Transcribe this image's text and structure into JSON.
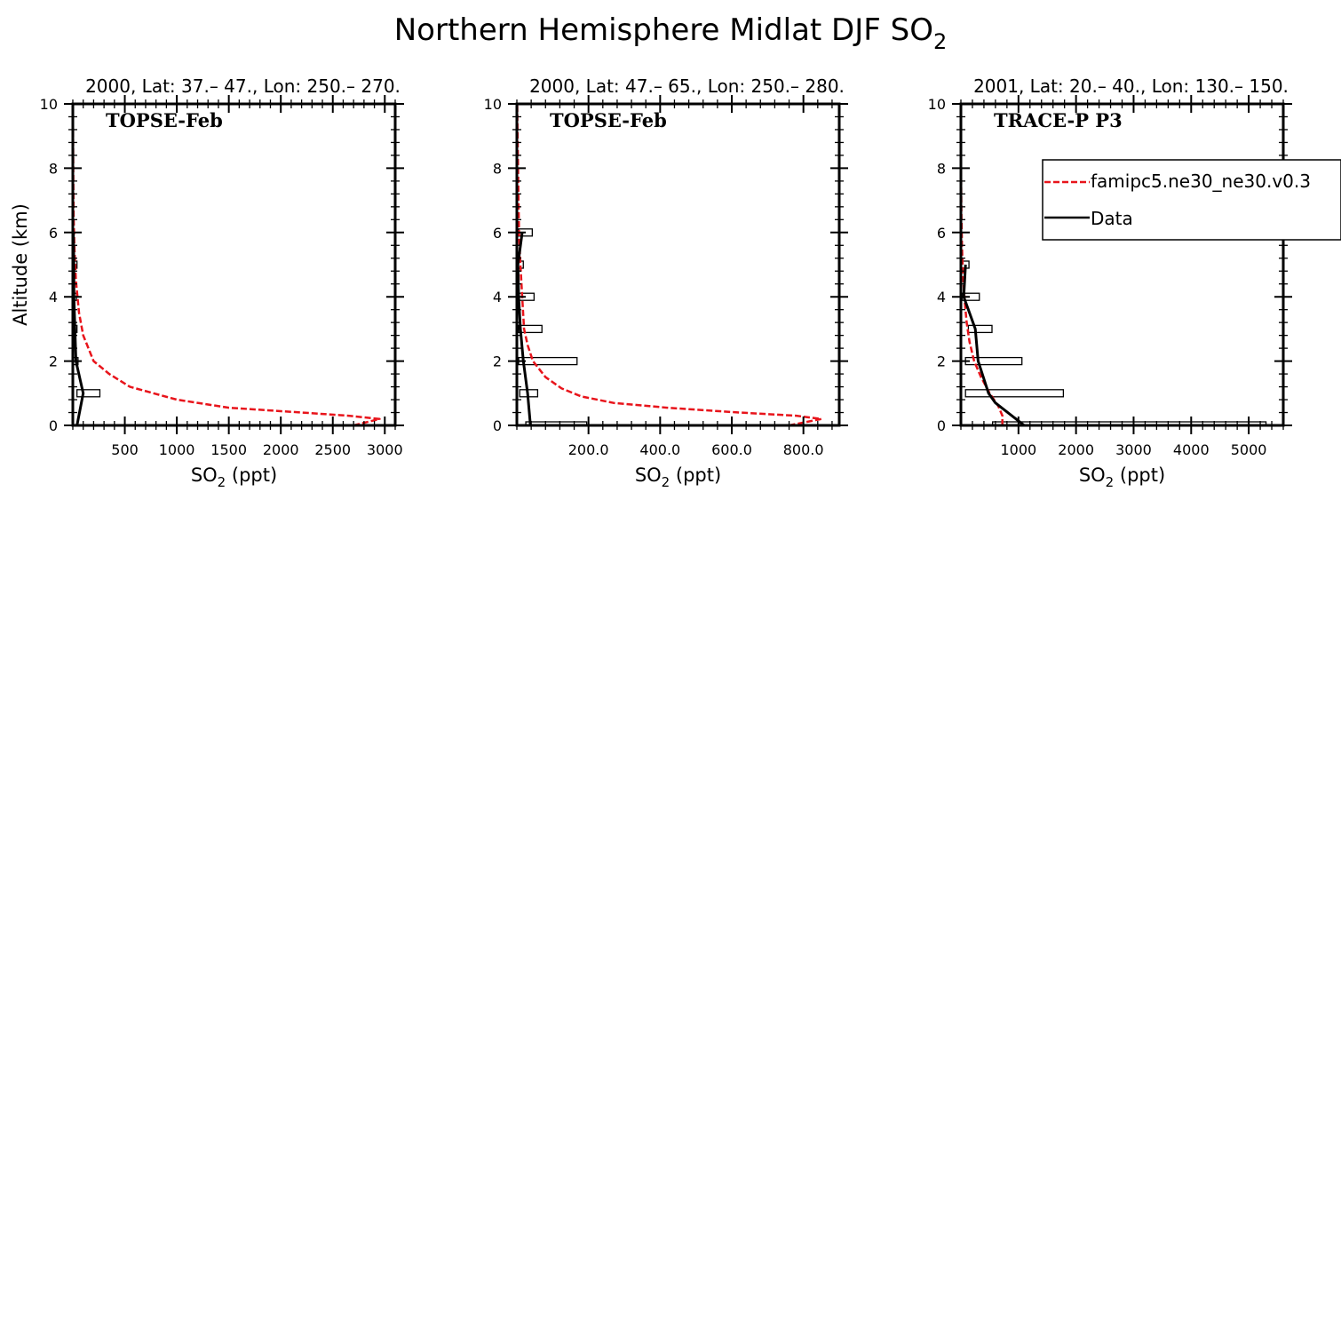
{
  "figure": {
    "title_main": "Northern Hemisphere Midlat DJF SO",
    "title_sub": "2",
    "y_axis_label": "Altitude (km)",
    "legend": {
      "model_label": "famipc5.ne30_ne30.v0.3",
      "data_label": "Data"
    },
    "colors": {
      "model": "#e8141b",
      "data": "#000000"
    }
  },
  "chart_data": [
    {
      "type": "line",
      "title": "2000, Lat: 37.– 47., Lon: 250.– 270.",
      "campaign": "TOPSE-Feb",
      "xlabel_main": "SO",
      "xlabel_sub": "2",
      "xlabel_unit": "(ppt)",
      "xlim": [
        0,
        3100
      ],
      "ylim": [
        0,
        10
      ],
      "x_ticks": [
        500,
        1000,
        1500,
        2000,
        2500,
        3000
      ],
      "x_tick_labels": [
        "500",
        "1000",
        "1500",
        "2000",
        "2500",
        "3000"
      ],
      "x_minor_step": 100,
      "y_ticks": [
        0,
        2,
        4,
        6,
        8,
        10
      ],
      "y_tick_labels": [
        "0",
        "2",
        "4",
        "6",
        "8",
        "10"
      ],
      "series": [
        {
          "name": "famipc5.ne30_ne30.v0.3",
          "style": "dashed",
          "x": [
            2700,
            2950,
            2650,
            2200,
            1500,
            1000,
            550,
            350,
            200,
            100,
            60,
            30,
            15,
            8,
            5,
            3,
            2,
            1
          ],
          "y": [
            0.0,
            0.2,
            0.3,
            0.4,
            0.55,
            0.8,
            1.2,
            1.6,
            2.0,
            2.8,
            3.5,
            4.5,
            5.5,
            6.5,
            7.5,
            8.5,
            9.5,
            10.0
          ]
        },
        {
          "name": "Data",
          "style": "solid",
          "x": [
            40,
            100,
            30,
            10,
            10,
            5
          ],
          "y": [
            0,
            1,
            2,
            4,
            5,
            6
          ]
        }
      ],
      "boxes": [
        {
          "y": 1,
          "xmin": 40,
          "xmax": 260
        },
        {
          "y": 2,
          "xmin": 0,
          "xmax": 50
        },
        {
          "y": 3,
          "xmin": 0,
          "xmax": 40
        },
        {
          "y": 4,
          "xmin": 0,
          "xmax": 35
        },
        {
          "y": 5,
          "xmin": 0,
          "xmax": 40
        }
      ]
    },
    {
      "type": "line",
      "title": "2000, Lat: 47.– 65., Lon: 250.– 280.",
      "campaign": "TOPSE-Feb",
      "xlabel_main": "SO",
      "xlabel_sub": "2",
      "xlabel_unit": "(ppt)",
      "xlim": [
        0,
        900
      ],
      "ylim": [
        0,
        10
      ],
      "x_ticks": [
        200,
        400,
        600,
        800
      ],
      "x_tick_labels": [
        "200.0",
        "400.0",
        "600.0",
        "800.0"
      ],
      "x_minor_step": 40,
      "y_ticks": [
        0,
        2,
        4,
        6,
        8,
        10
      ],
      "y_tick_labels": [
        "0",
        "2",
        "4",
        "6",
        "8",
        "10"
      ],
      "series": [
        {
          "name": "famipc5.ne30_ne30.v0.3",
          "style": "dashed",
          "x": [
            760,
            850,
            780,
            620,
            420,
            270,
            180,
            125,
            80,
            45,
            30,
            20,
            15,
            10,
            6,
            4,
            2,
            1
          ],
          "y": [
            0.0,
            0.2,
            0.3,
            0.4,
            0.55,
            0.7,
            0.9,
            1.15,
            1.5,
            2.0,
            2.5,
            3.0,
            4.0,
            5.0,
            6.0,
            7.5,
            9.0,
            10.0
          ]
        },
        {
          "name": "Data",
          "style": "solid",
          "x": [
            38,
            30,
            18,
            10,
            5,
            3,
            15
          ],
          "y": [
            0,
            1,
            2,
            3,
            4,
            5,
            6
          ]
        }
      ],
      "boxes": [
        {
          "y": 0,
          "xmin": 25,
          "xmax": 195
        },
        {
          "y": 1,
          "xmin": 8,
          "xmax": 58
        },
        {
          "y": 2,
          "xmin": 5,
          "xmax": 168
        },
        {
          "y": 3,
          "xmin": 5,
          "xmax": 70
        },
        {
          "y": 4,
          "xmin": 0,
          "xmax": 48
        },
        {
          "y": 5,
          "xmin": 0,
          "xmax": 18
        },
        {
          "y": 6,
          "xmin": 5,
          "xmax": 43
        }
      ]
    },
    {
      "type": "line",
      "title": "2001, Lat: 20.– 40., Lon: 130.– 150.",
      "campaign": "TRACE-P P3",
      "xlabel_main": "SO",
      "xlabel_sub": "2",
      "xlabel_unit": "(ppt)",
      "xlim": [
        0,
        5600
      ],
      "ylim": [
        0,
        10
      ],
      "x_ticks": [
        1000,
        2000,
        3000,
        4000,
        5000
      ],
      "x_tick_labels": [
        "1000",
        "2000",
        "3000",
        "4000",
        "5000"
      ],
      "x_minor_step": 200,
      "y_ticks": [
        0,
        2,
        4,
        6,
        8,
        10
      ],
      "y_tick_labels": [
        "0",
        "2",
        "4",
        "6",
        "8",
        "10"
      ],
      "series": [
        {
          "name": "famipc5.ne30_ne30.v0.3",
          "style": "dashed",
          "x": [
            720,
            720,
            650,
            500,
            350,
            230,
            150,
            100,
            70,
            50,
            30,
            20,
            10,
            5,
            3,
            1
          ],
          "y": [
            0.0,
            0.3,
            0.6,
            1.0,
            1.5,
            2.0,
            2.6,
            3.2,
            3.8,
            4.3,
            5.0,
            5.5,
            6.5,
            7.5,
            8.5,
            10.0
          ]
        },
        {
          "name": "Data",
          "style": "solid",
          "x": [
            1100,
            600,
            480,
            300,
            250,
            50,
            80
          ],
          "y": [
            0,
            0.7,
            1,
            2,
            3,
            4,
            5
          ]
        }
      ],
      "boxes": [
        {
          "y": 0,
          "xmin": 550,
          "xmax": 5300
        },
        {
          "y": 1,
          "xmin": 80,
          "xmax": 1780
        },
        {
          "y": 2,
          "xmin": 80,
          "xmax": 1060
        },
        {
          "y": 3,
          "xmin": 130,
          "xmax": 540
        },
        {
          "y": 4,
          "xmin": 20,
          "xmax": 320
        },
        {
          "y": 5,
          "xmin": 10,
          "xmax": 140
        }
      ]
    }
  ]
}
